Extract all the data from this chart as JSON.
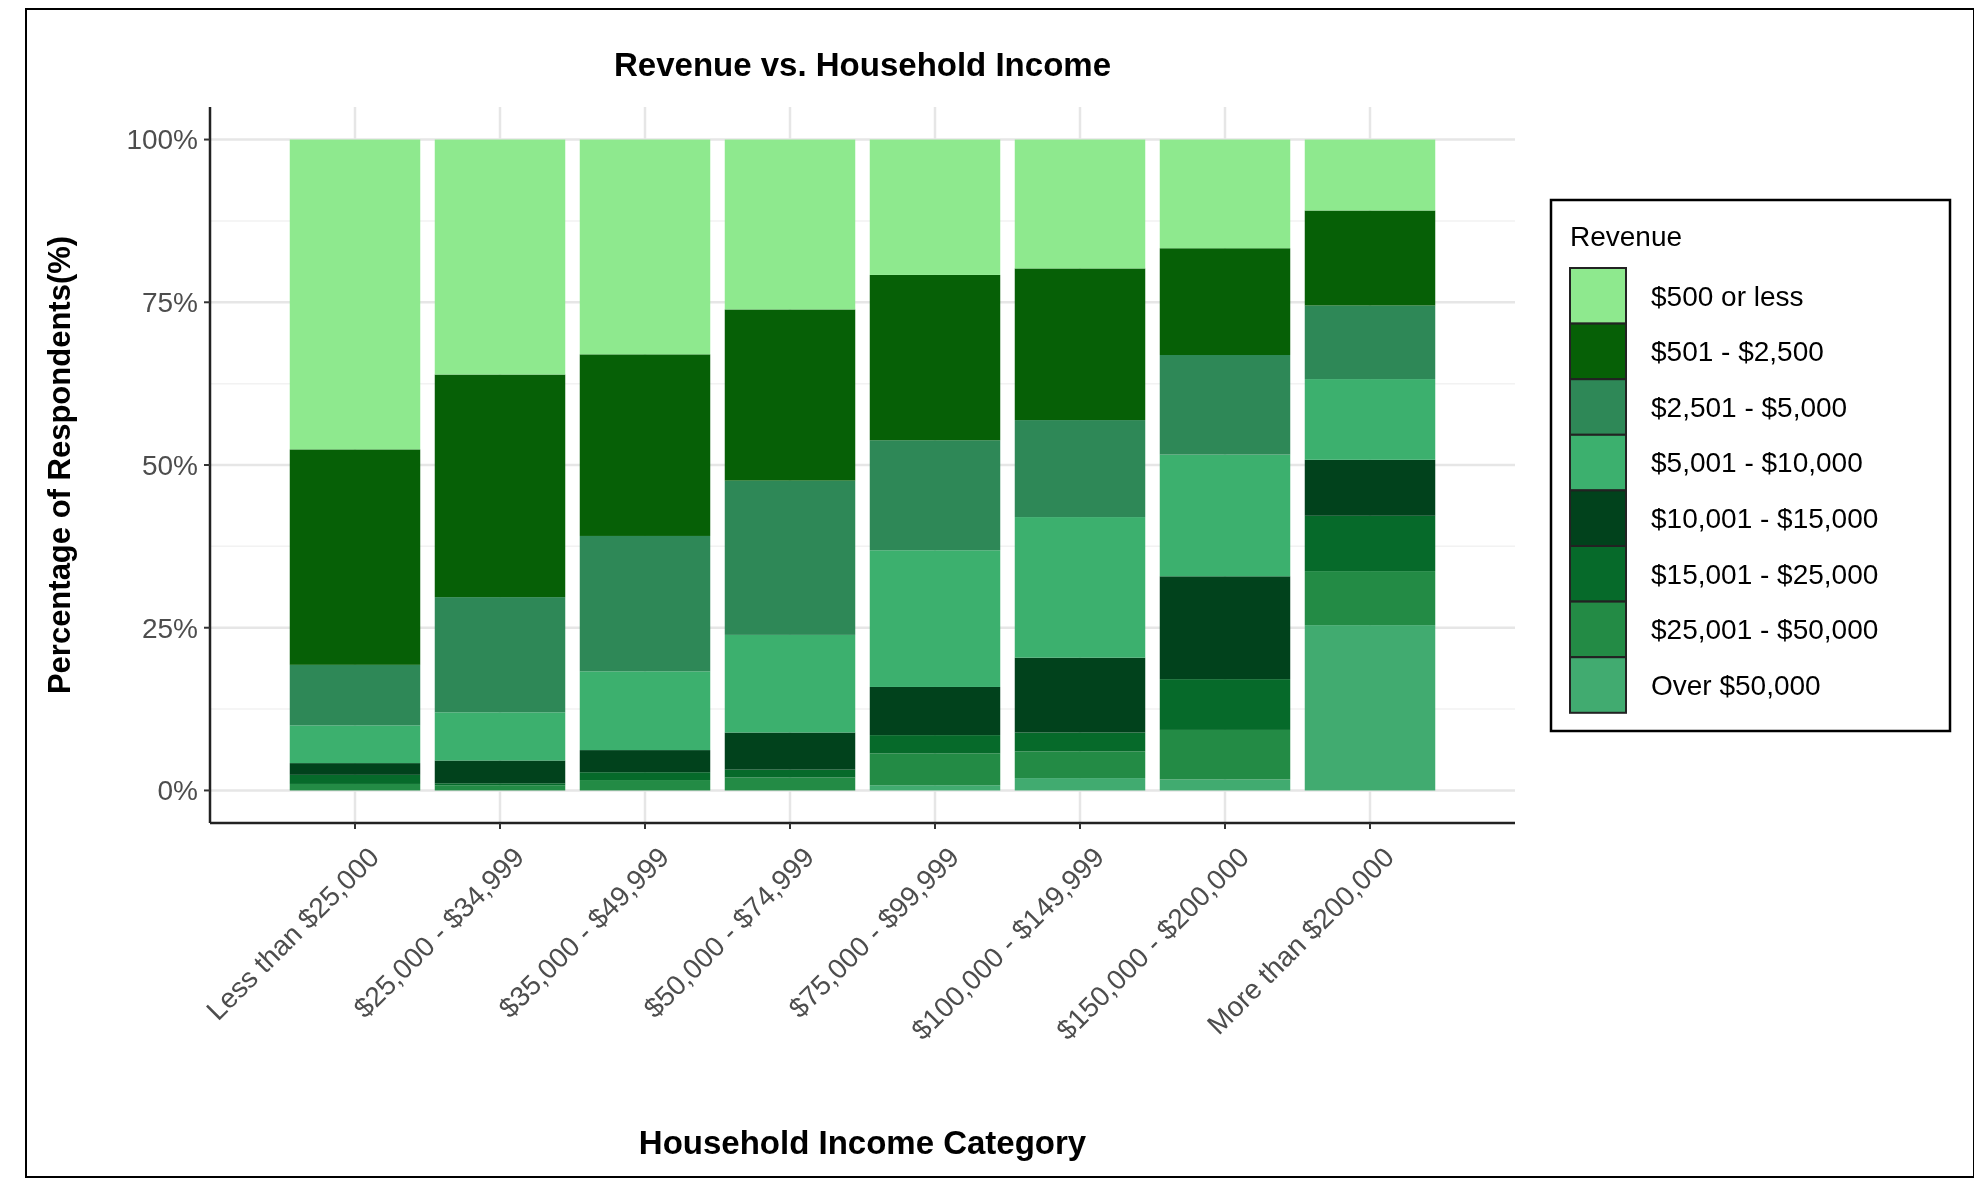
{
  "chart_data": {
    "type": "bar",
    "title": "Revenue vs. Household Income",
    "xlabel": "Household Income Category",
    "ylabel": "Percentage of Respondents(%)",
    "legend_title": "Revenue",
    "legend": "right",
    "grid": true,
    "stacked": true,
    "categories": [
      "Less than $25,000",
      "$25,000 - $34,999",
      "$35,000 - $49,999",
      "$50,000 - $74,999",
      "$75,000 - $99,999",
      "$100,000 - $149,999",
      "$150,000 - $200,000",
      "More than $200,000"
    ],
    "ylim": [
      -5,
      105
    ],
    "yticks": [
      {
        "value": 0,
        "label": "0%"
      },
      {
        "value": 25,
        "label": "25%"
      },
      {
        "value": 50,
        "label": "50%"
      },
      {
        "value": 75,
        "label": "75%"
      },
      {
        "value": 100,
        "label": "100%"
      }
    ],
    "series": [
      {
        "name": "Over $50,000",
        "color": "#41ab70",
        "values": [
          0,
          0,
          0,
          0,
          0.8,
          1.9,
          1.7,
          25.4
        ]
      },
      {
        "name": "$25,001 - $50,000",
        "color": "#238b45",
        "values": [
          1.0,
          0.8,
          1.6,
          2.0,
          4.9,
          4.1,
          7.6,
          8.3
        ]
      },
      {
        "name": "$15,001 - $25,000",
        "color": "#066a2a",
        "values": [
          1.4,
          0.3,
          1.2,
          1.2,
          2.8,
          2.9,
          7.8,
          8.5
        ]
      },
      {
        "name": "$10,001 - $15,000",
        "color": "#01421c",
        "values": [
          1.8,
          3.5,
          3.4,
          5.7,
          7.4,
          11.5,
          15.8,
          8.6
        ]
      },
      {
        "name": "$5,001 - $10,000",
        "color": "#3cb06e",
        "values": [
          5.8,
          7.4,
          12.1,
          15.0,
          21.0,
          21.6,
          18.7,
          12.4
        ]
      },
      {
        "name": "$2,501 - $5,000",
        "color": "#2e8857",
        "values": [
          9.3,
          17.7,
          20.8,
          23.7,
          16.9,
          14.9,
          15.3,
          11.3
        ]
      },
      {
        "name": "$501 - $2,500",
        "color": "#066006",
        "values": [
          33.1,
          34.2,
          27.9,
          26.3,
          25.4,
          23.3,
          16.4,
          14.6
        ]
      },
      {
        "name": "$500 or less",
        "color": "#8ee98e",
        "values": [
          47.6,
          36.1,
          33.0,
          26.1,
          20.8,
          19.8,
          16.7,
          10.9
        ]
      }
    ]
  }
}
